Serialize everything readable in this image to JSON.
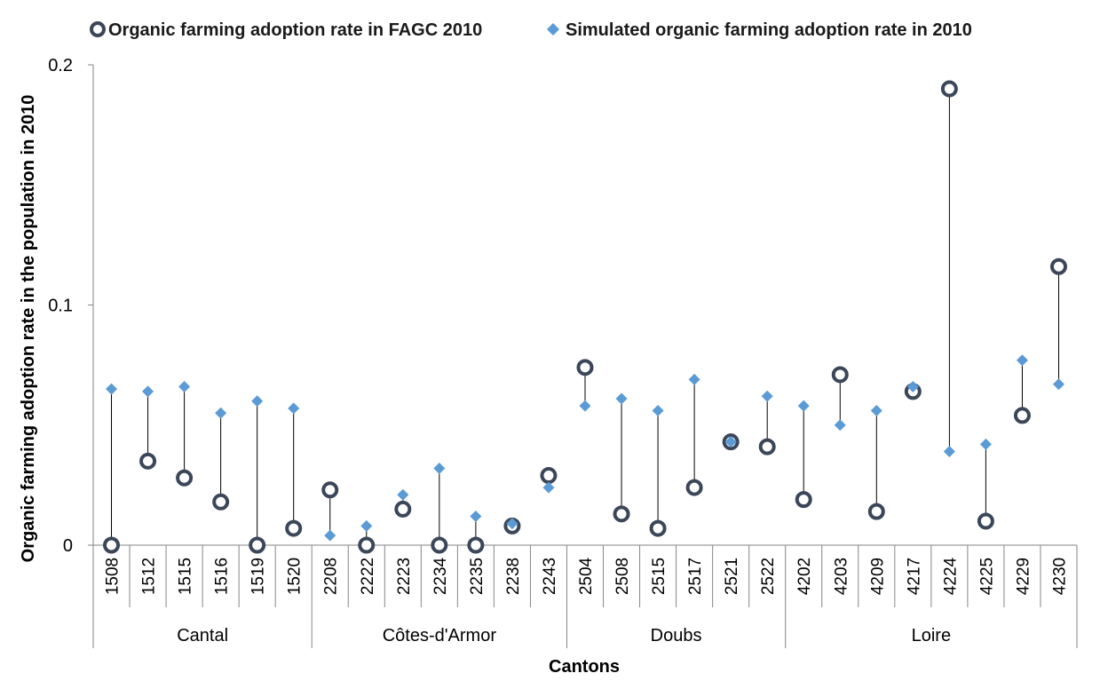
{
  "chart_data": {
    "type": "scatter",
    "title": "",
    "xlabel": "Cantons",
    "ylabel": "Organic farming adoption rate in the population in 2010",
    "ylim": [
      0,
      0.2
    ],
    "yticks": [
      "0",
      "0.1",
      "0.2"
    ],
    "grid": false,
    "legend_position": "top",
    "categories": [
      "1508",
      "1512",
      "1515",
      "1516",
      "1519",
      "1520",
      "2208",
      "2222",
      "2223",
      "2234",
      "2235",
      "2238",
      "2243",
      "2504",
      "2508",
      "2515",
      "2517",
      "2521",
      "2522",
      "4202",
      "4203",
      "4209",
      "4217",
      "4224",
      "4225",
      "4229",
      "4230"
    ],
    "groups": [
      {
        "name": "Cantal",
        "count": 6
      },
      {
        "name": "Côtes-d'Armor",
        "count": 7
      },
      {
        "name": "Doubs",
        "count": 6
      },
      {
        "name": "Loire",
        "count": 8
      }
    ],
    "series": [
      {
        "name": "Organic farming adoption rate in FAGC 2010",
        "marker": "circle-open",
        "color": "#3b4658",
        "values": [
          0.0,
          0.035,
          0.028,
          0.018,
          0.0,
          0.007,
          0.023,
          0.0,
          0.015,
          0.0,
          0.0,
          0.008,
          0.029,
          0.074,
          0.013,
          0.007,
          0.024,
          0.043,
          0.041,
          0.019,
          0.071,
          0.014,
          0.064,
          0.19,
          0.01,
          0.054,
          0.116
        ]
      },
      {
        "name": "Simulated organic farming adoption rate in 2010",
        "marker": "diamond",
        "color": "#5b9bd5",
        "values": [
          0.065,
          0.064,
          0.066,
          0.055,
          0.06,
          0.057,
          0.004,
          0.008,
          0.021,
          0.032,
          0.012,
          0.009,
          0.024,
          0.058,
          0.061,
          0.056,
          0.069,
          0.043,
          0.062,
          0.058,
          0.05,
          0.056,
          0.066,
          0.039,
          0.042,
          0.077,
          0.067
        ]
      }
    ]
  }
}
